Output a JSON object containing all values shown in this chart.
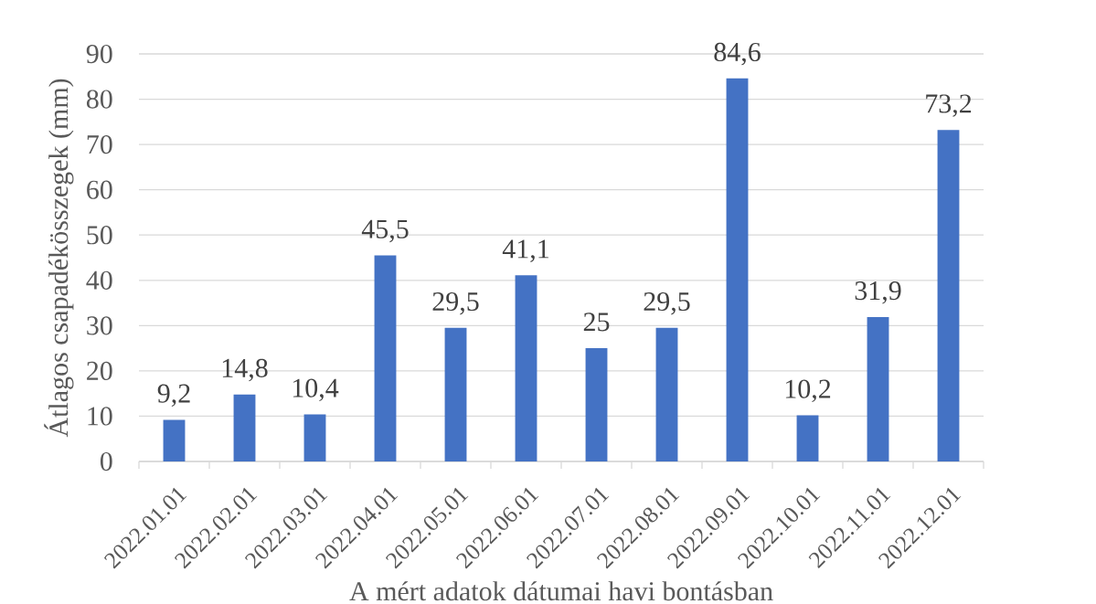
{
  "chart_data": {
    "type": "bar",
    "xlabel": "A mért adatok dátumai havi bontásban",
    "ylabel": "Átlagos csapadékösszegek (mm)",
    "categories": [
      "2022.01.01",
      "2022.02.01",
      "2022.03.01",
      "2022.04.01",
      "2022.05.01",
      "2022.06.01",
      "2022.07.01",
      "2022.08.01",
      "2022.09.01",
      "2022.10.01",
      "2022.11.01",
      "2022.12.01"
    ],
    "values": [
      9.2,
      14.8,
      10.4,
      45.5,
      29.5,
      41.1,
      25,
      29.5,
      84.6,
      10.2,
      31.9,
      73.2
    ],
    "value_labels": [
      "9,2",
      "14,8",
      "10,4",
      "45,5",
      "29,5",
      "41,1",
      "25",
      "29,5",
      "84,6",
      "10,2",
      "31,9",
      "73,2"
    ],
    "color": "#4472c4",
    "ylim": [
      0,
      90
    ],
    "yticks": [
      0,
      10,
      20,
      30,
      40,
      50,
      60,
      70,
      80,
      90
    ],
    "grid": "y"
  }
}
